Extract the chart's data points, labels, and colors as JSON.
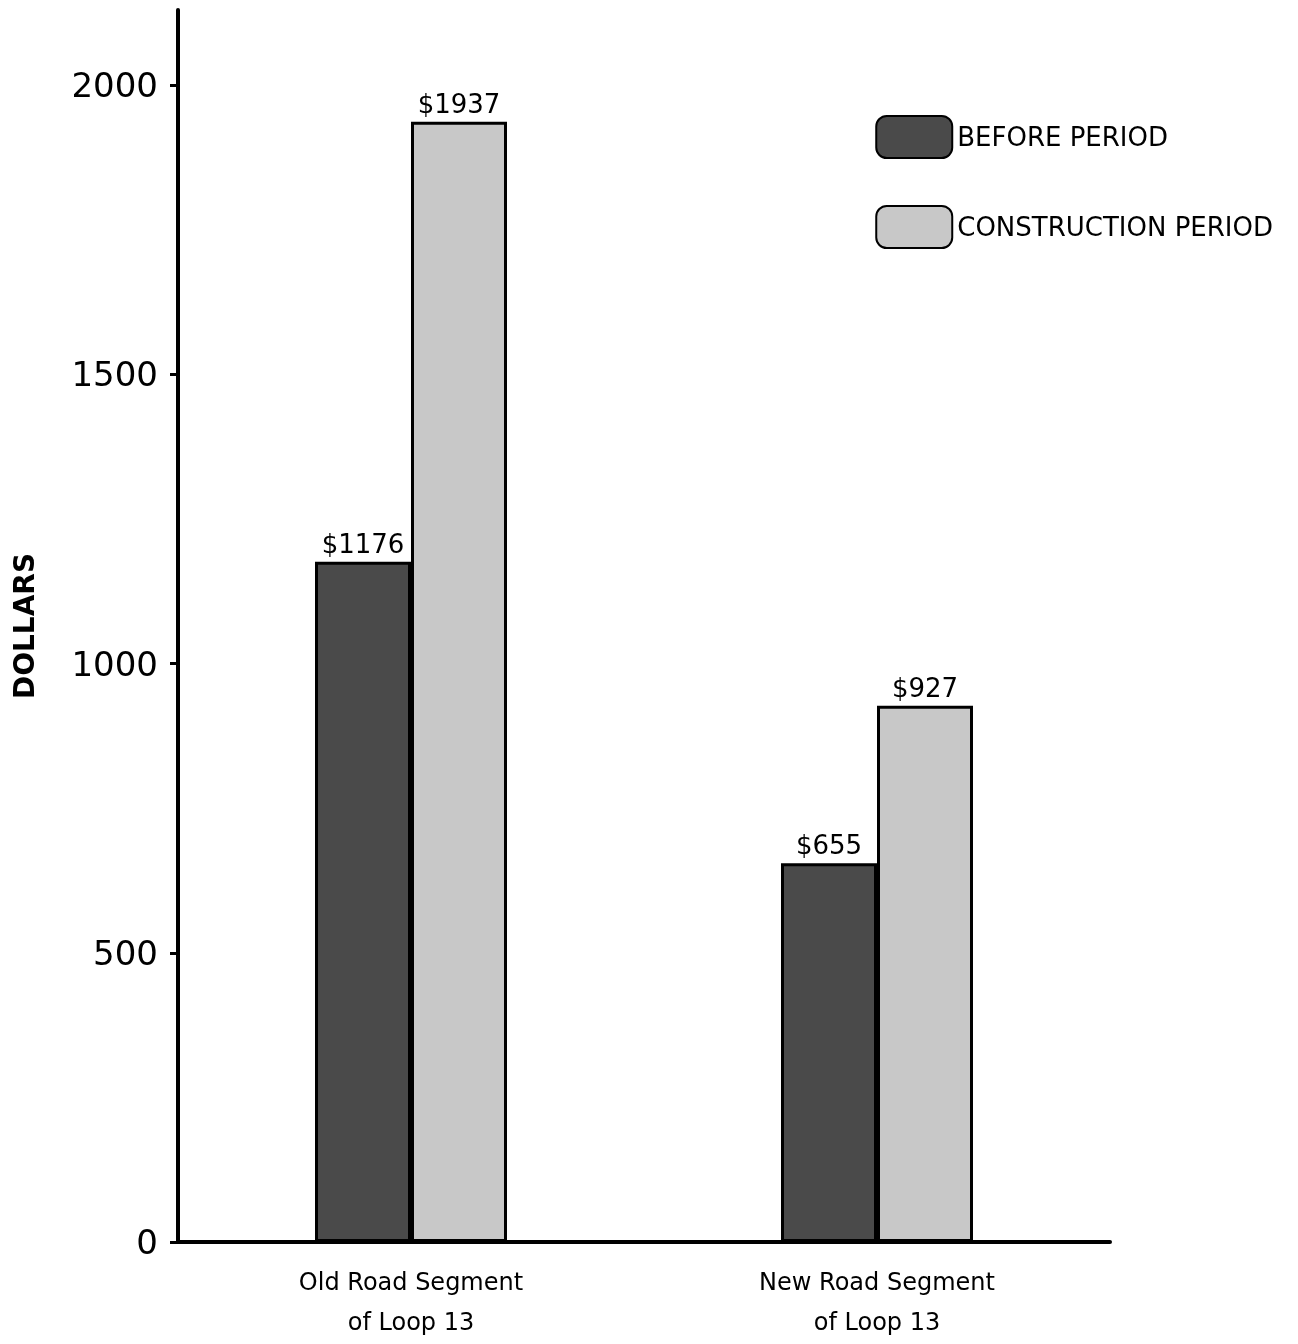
{
  "chart_data": {
    "type": "bar",
    "ylabel": "DOLLARS",
    "categories": [
      "Old Road Segment\nof Loop 13",
      "New Road Segment\nof Loop 13"
    ],
    "series": [
      {
        "name": "BEFORE PERIOD",
        "color": "#4a4a4a",
        "values": [
          1176,
          655
        ],
        "value_labels": [
          "$1176",
          "$655"
        ]
      },
      {
        "name": "CONSTRUCTION PERIOD",
        "color": "#c8c8c8",
        "values": [
          1937,
          927
        ],
        "value_labels": [
          "$1937",
          "$927"
        ]
      }
    ],
    "ylim": [
      0,
      2130
    ],
    "yticks": [
      0,
      500,
      1000,
      1500,
      2000
    ],
    "grid": false,
    "legend": "top right"
  }
}
